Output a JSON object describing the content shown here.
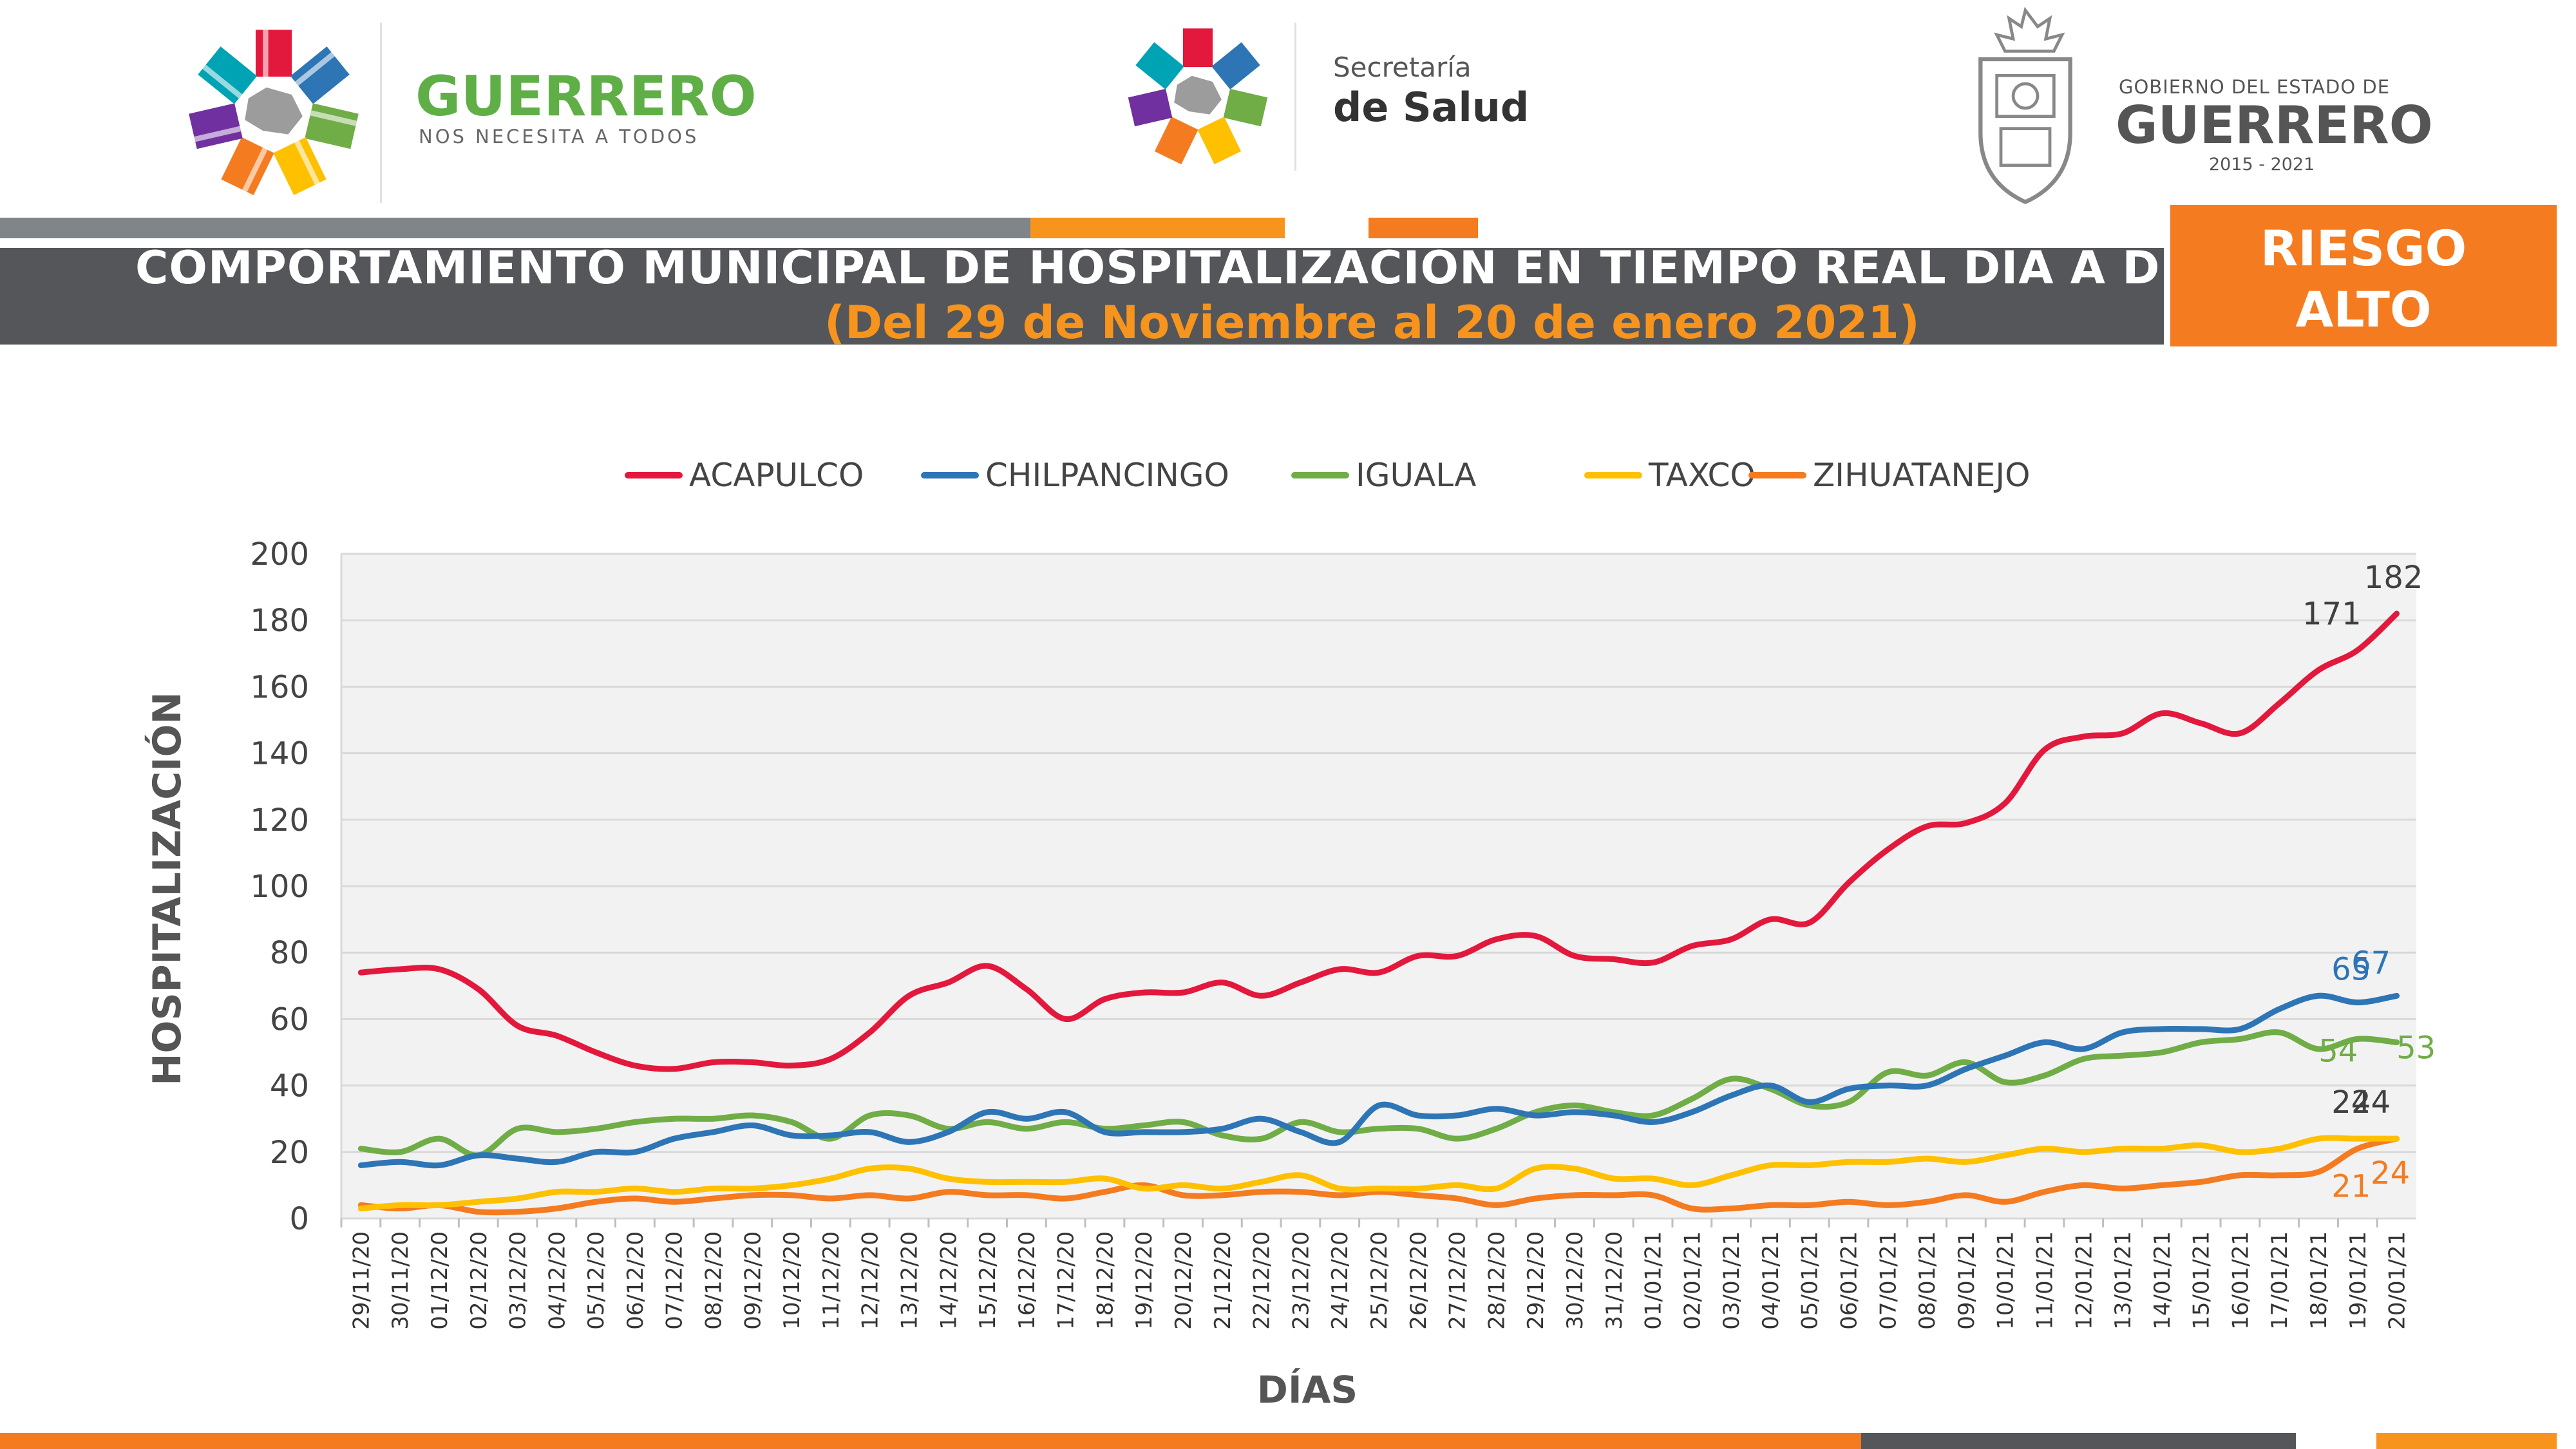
{
  "header": {
    "logo_left_title": "GUERRERO",
    "logo_left_subtitle": "NOS NECESITA A TODOS",
    "logo_center_line1": "Secretaría",
    "logo_center_line2": "de Salud",
    "logo_right_line1": "GOBIERNO DEL ESTADO DE",
    "logo_right_line2": "GUERRERO",
    "logo_right_line3": "2015 - 2021"
  },
  "banner": {
    "title": "COMPORTAMIENTO MUNICIPAL DE HOSPITALIZACIÓN EN TIEMPO REAL DÍA A DÍA",
    "subtitle": "(Del 29 de Noviembre al 20 de enero 2021)",
    "risk_line1": "RIESGO",
    "risk_line2": "ALTO"
  },
  "colors": {
    "dark_gray": "#54565a",
    "mid_gray": "#7f8589",
    "orange": "#f7941d",
    "deep_orange": "#f47b20",
    "plot_bg": "#f2f2f2"
  },
  "chart_data": {
    "type": "line",
    "xlabel": "DÍAS",
    "ylabel": "HOSPITALIZACIÓN",
    "ylim": [
      0,
      200
    ],
    "yticks": [
      0,
      20,
      40,
      60,
      80,
      100,
      120,
      140,
      160,
      180,
      200
    ],
    "grid": true,
    "legend_position": "top",
    "categories": [
      "29/11/20",
      "30/11/20",
      "01/12/20",
      "02/12/20",
      "03/12/20",
      "04/12/20",
      "05/12/20",
      "06/12/20",
      "07/12/20",
      "08/12/20",
      "09/12/20",
      "10/12/20",
      "11/12/20",
      "12/12/20",
      "13/12/20",
      "14/12/20",
      "15/12/20",
      "16/12/20",
      "17/12/20",
      "18/12/20",
      "19/12/20",
      "20/12/20",
      "21/12/20",
      "22/12/20",
      "23/12/20",
      "24/12/20",
      "25/12/20",
      "26/12/20",
      "27/12/20",
      "28/12/20",
      "29/12/20",
      "30/12/20",
      "31/12/20",
      "01/01/21",
      "02/01/21",
      "03/01/21",
      "04/01/21",
      "05/01/21",
      "06/01/21",
      "07/01/21",
      "08/01/21",
      "09/01/21",
      "10/01/21",
      "11/01/21",
      "12/01/21",
      "13/01/21",
      "14/01/21",
      "15/01/21",
      "16/01/21",
      "17/01/21",
      "18/01/21",
      "19/01/21",
      "20/01/21"
    ],
    "series": [
      {
        "name": "ACAPULCO",
        "color": "#e3183d",
        "values": [
          74,
          75,
          75,
          69,
          58,
          55,
          50,
          46,
          45,
          47,
          47,
          46,
          48,
          56,
          67,
          71,
          76,
          69,
          60,
          66,
          68,
          68,
          71,
          67,
          71,
          75,
          74,
          79,
          79,
          84,
          85,
          79,
          78,
          77,
          82,
          84,
          90,
          89,
          101,
          111,
          118,
          119,
          125,
          141,
          145,
          146,
          152,
          149,
          146,
          155,
          165,
          171,
          182
        ],
        "labels": [
          {
            "index": 51,
            "text": "171"
          },
          {
            "index": 52,
            "text": "182"
          }
        ]
      },
      {
        "name": "CHILPANCINGO",
        "color": "#2e75b6",
        "values": [
          16,
          17,
          16,
          19,
          18,
          17,
          20,
          20,
          24,
          26,
          28,
          25,
          25,
          26,
          23,
          26,
          32,
          30,
          32,
          26,
          26,
          26,
          27,
          30,
          26,
          23,
          34,
          31,
          31,
          33,
          31,
          32,
          31,
          29,
          32,
          37,
          40,
          35,
          39,
          40,
          40,
          45,
          49,
          53,
          51,
          56,
          57,
          57,
          57,
          63,
          67,
          65,
          67
        ],
        "labels": [
          {
            "index": 51,
            "text": "65"
          },
          {
            "index": 52,
            "text": "67"
          }
        ]
      },
      {
        "name": "IGUALA",
        "color": "#70ad47",
        "values": [
          21,
          20,
          24,
          19,
          27,
          26,
          27,
          29,
          30,
          30,
          31,
          29,
          24,
          31,
          31,
          27,
          29,
          27,
          29,
          27,
          28,
          29,
          25,
          24,
          29,
          26,
          27,
          27,
          24,
          27,
          32,
          34,
          32,
          31,
          36,
          42,
          39,
          34,
          35,
          44,
          43,
          47,
          41,
          43,
          48,
          49,
          50,
          53,
          54,
          56,
          51,
          54,
          53
        ],
        "labels": [
          {
            "index": 51,
            "text": "54"
          },
          {
            "index": 52,
            "text": "53"
          }
        ]
      },
      {
        "name": "TAXCO",
        "color": "#ffc000",
        "values": [
          3,
          4,
          4,
          5,
          6,
          8,
          8,
          9,
          8,
          9,
          9,
          10,
          12,
          15,
          15,
          12,
          11,
          11,
          11,
          12,
          9,
          10,
          9,
          11,
          13,
          9,
          9,
          9,
          10,
          9,
          15,
          15,
          12,
          12,
          10,
          13,
          16,
          16,
          17,
          17,
          18,
          17,
          19,
          21,
          20,
          21,
          21,
          22,
          20,
          21,
          24,
          24,
          24
        ],
        "labels": [
          {
            "index": 51,
            "text": "24"
          },
          {
            "index": 52,
            "text": "24"
          }
        ]
      },
      {
        "name": "ZIHUATANEJO",
        "color": "#f47b20",
        "values": [
          4,
          3,
          4,
          2,
          2,
          3,
          5,
          6,
          5,
          6,
          7,
          7,
          6,
          7,
          6,
          8,
          7,
          7,
          6,
          8,
          10,
          7,
          7,
          8,
          8,
          7,
          8,
          7,
          6,
          4,
          6,
          7,
          7,
          7,
          3,
          3,
          4,
          4,
          5,
          4,
          5,
          7,
          5,
          8,
          10,
          9,
          10,
          11,
          13,
          13,
          14,
          21,
          24
        ],
        "labels": [
          {
            "index": 51,
            "text": "21"
          },
          {
            "index": 52,
            "text": "24"
          }
        ]
      }
    ]
  }
}
